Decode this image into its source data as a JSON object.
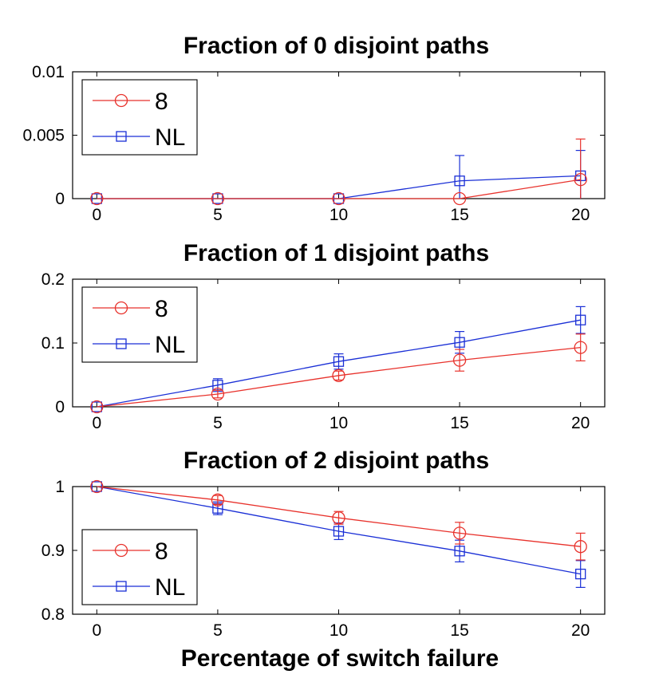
{
  "colors": {
    "series_8": "#e8322c",
    "series_NL": "#1a2fd6",
    "axis": "#000000"
  },
  "figure": {
    "xlabel": "Percentage of switch failure"
  },
  "chart_data": [
    {
      "type": "line",
      "title": "Fraction of 0 disjoint paths",
      "x": [
        0,
        5,
        10,
        15,
        20
      ],
      "xticks": [
        "0",
        "5",
        "10",
        "15",
        "20"
      ],
      "xlim": [
        -1,
        21
      ],
      "ylim": [
        0,
        0.01
      ],
      "yticks": [
        "0",
        "0.005",
        "0.01"
      ],
      "legend": "top-left",
      "series": [
        {
          "name": "8",
          "marker": "circle",
          "values": [
            0,
            0,
            0,
            0,
            0.0015
          ],
          "err": [
            0,
            0,
            0,
            0,
            0.0032
          ]
        },
        {
          "name": "NL",
          "marker": "square",
          "values": [
            0,
            0,
            0,
            0.0014,
            0.0018
          ],
          "err": [
            0,
            0,
            0,
            0.002,
            0.002
          ]
        }
      ]
    },
    {
      "type": "line",
      "title": "Fraction of 1 disjoint paths",
      "x": [
        0,
        5,
        10,
        15,
        20
      ],
      "xticks": [
        "0",
        "5",
        "10",
        "15",
        "20"
      ],
      "xlim": [
        -1,
        21
      ],
      "ylim": [
        0,
        0.2
      ],
      "yticks": [
        "0",
        "0.1",
        "0.2"
      ],
      "legend": "top-left",
      "series": [
        {
          "name": "8",
          "marker": "circle",
          "values": [
            0,
            0.02,
            0.049,
            0.073,
            0.093
          ],
          "err": [
            0,
            0.006,
            0.007,
            0.017,
            0.021
          ]
        },
        {
          "name": "NL",
          "marker": "square",
          "values": [
            0,
            0.034,
            0.071,
            0.101,
            0.136
          ],
          "err": [
            0,
            0.01,
            0.012,
            0.017,
            0.021
          ]
        }
      ]
    },
    {
      "type": "line",
      "title": "Fraction of 2 disjoint paths",
      "x": [
        0,
        5,
        10,
        15,
        20
      ],
      "xticks": [
        "0",
        "5",
        "10",
        "15",
        "20"
      ],
      "xlim": [
        -1,
        21
      ],
      "ylim": [
        0.8,
        1.0
      ],
      "yticks": [
        "0.8",
        "0.9",
        "1"
      ],
      "legend": "bottom-left",
      "series": [
        {
          "name": "8",
          "marker": "circle",
          "values": [
            1.0,
            0.979,
            0.951,
            0.927,
            0.906
          ],
          "err": [
            0,
            0.007,
            0.01,
            0.017,
            0.021
          ]
        },
        {
          "name": "NL",
          "marker": "square",
          "values": [
            1.0,
            0.966,
            0.93,
            0.899,
            0.863
          ],
          "err": [
            0,
            0.01,
            0.013,
            0.017,
            0.021
          ]
        }
      ]
    }
  ]
}
